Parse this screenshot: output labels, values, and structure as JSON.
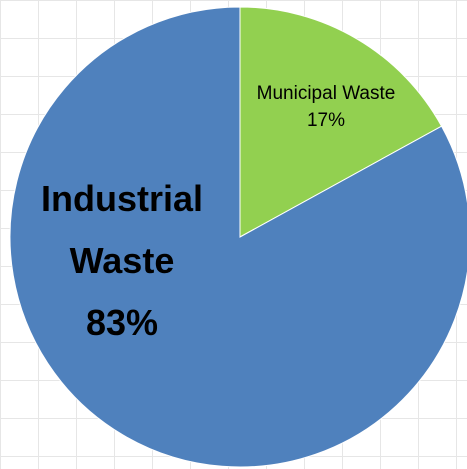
{
  "chart_data": {
    "type": "pie",
    "slices": [
      {
        "label_lines": [
          "Municipal Waste"
        ],
        "value": 17,
        "value_label": "17%",
        "color": "#92D050"
      },
      {
        "label_lines": [
          "Industrial",
          "Waste"
        ],
        "value": 83,
        "value_label": "83%",
        "color": "#4F81BD"
      }
    ],
    "start_angle_deg": 0,
    "direction": "clockwise",
    "legend": "none",
    "grid": true
  }
}
